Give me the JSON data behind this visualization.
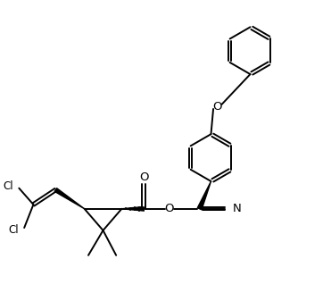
{
  "bg_color": "#ffffff",
  "line_color": "#000000",
  "lw": 1.4,
  "fs": 8.5,
  "figsize": [
    3.71,
    3.37
  ],
  "dpi": 100,
  "xlim": [
    0,
    10
  ],
  "ylim": [
    0,
    9
  ]
}
